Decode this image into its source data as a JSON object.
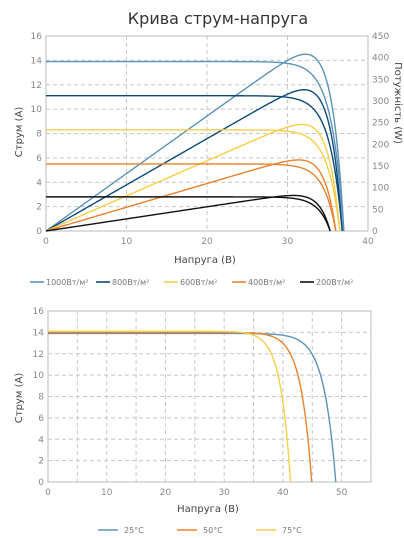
{
  "chart_data": [
    {
      "type": "line",
      "title": "Крива струм-напруга",
      "xlabel": "Напруга (В)",
      "ylabel": "Струм (А)",
      "y2label": "Потужність (W)",
      "xlim": [
        0,
        40
      ],
      "ylim": [
        0,
        16
      ],
      "y2lim": [
        0,
        450
      ],
      "xticks": [
        "0",
        "10",
        "20",
        "30",
        "40"
      ],
      "yticks": [
        "0",
        "2",
        "4",
        "6",
        "8",
        "10",
        "12",
        "14",
        "16"
      ],
      "y2ticks": [
        "0",
        "50",
        "100",
        "150",
        "200",
        "250",
        "300",
        "350",
        "400",
        "450"
      ],
      "grid": true,
      "legend_position": "bottom",
      "series": [
        {
          "name": "1000Вт/м²",
          "color": "#5b93b8",
          "isc": 13.9,
          "voc": 37.0,
          "vmp": 30.8,
          "pmax": 408
        },
        {
          "name": "800Вт/м²",
          "color": "#0d4a7a",
          "isc": 11.1,
          "voc": 36.8,
          "vmp": 31.0,
          "pmax": 326
        },
        {
          "name": "600Вт/м²",
          "color": "#f5cf4a",
          "isc": 8.3,
          "voc": 36.5,
          "vmp": 30.8,
          "pmax": 246
        },
        {
          "name": "400Вт/м²",
          "color": "#e8822e",
          "isc": 5.5,
          "voc": 36.0,
          "vmp": 30.5,
          "pmax": 164
        },
        {
          "name": "200Вт/м²",
          "color": "#111111",
          "isc": 2.8,
          "voc": 35.3,
          "vmp": 30.8,
          "pmax": 82
        }
      ]
    },
    {
      "type": "line",
      "title": "",
      "xlabel": "Напруга (В)",
      "ylabel": "Струм (А)",
      "xlim": [
        0,
        55
      ],
      "ylim": [
        0,
        16
      ],
      "xticks": [
        "0",
        "10",
        "20",
        "30",
        "40",
        "50"
      ],
      "yticks": [
        "0",
        "2",
        "4",
        "6",
        "8",
        "10",
        "12",
        "14",
        "16"
      ],
      "grid": true,
      "legend_position": "bottom",
      "series": [
        {
          "name": "25°C",
          "color": "#5b93b8",
          "isc": 13.9,
          "voc": 49.0
        },
        {
          "name": "50°C",
          "color": "#e8822e",
          "isc": 14.0,
          "voc": 44.9
        },
        {
          "name": "75°C",
          "color": "#f5cf4a",
          "isc": 14.1,
          "voc": 41.3
        }
      ]
    }
  ]
}
